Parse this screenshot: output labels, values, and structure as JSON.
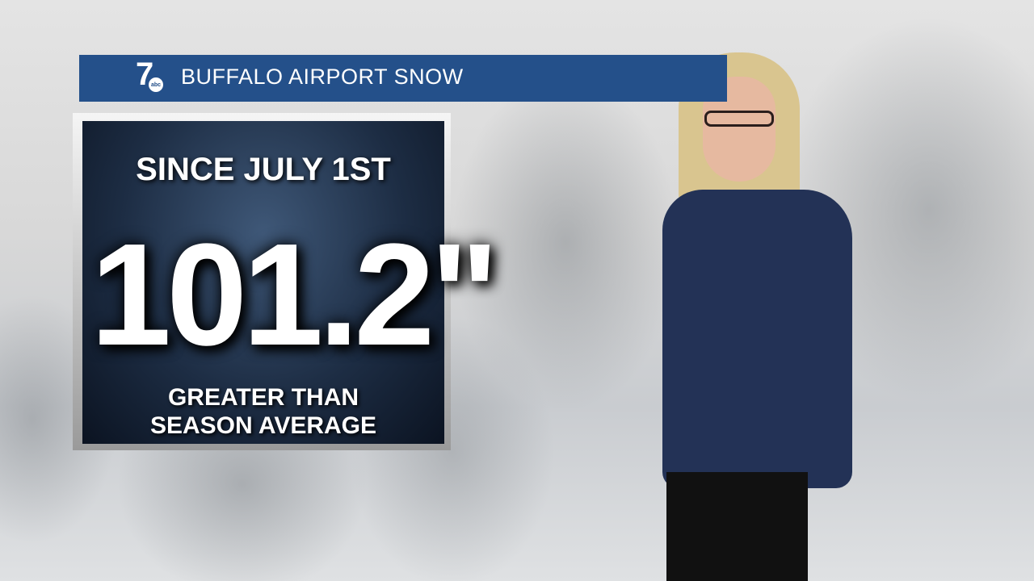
{
  "banner": {
    "title": "BUFFALO AIRPORT SNOW",
    "logo_number": "7",
    "logo_network": "abc",
    "color": "#24508a"
  },
  "stat_panel": {
    "period": "SINCE JULY 1ST",
    "value": "101.2\"",
    "comparison_line1": "GREATER THAN",
    "comparison_line2": "SEASON AVERAGE"
  }
}
